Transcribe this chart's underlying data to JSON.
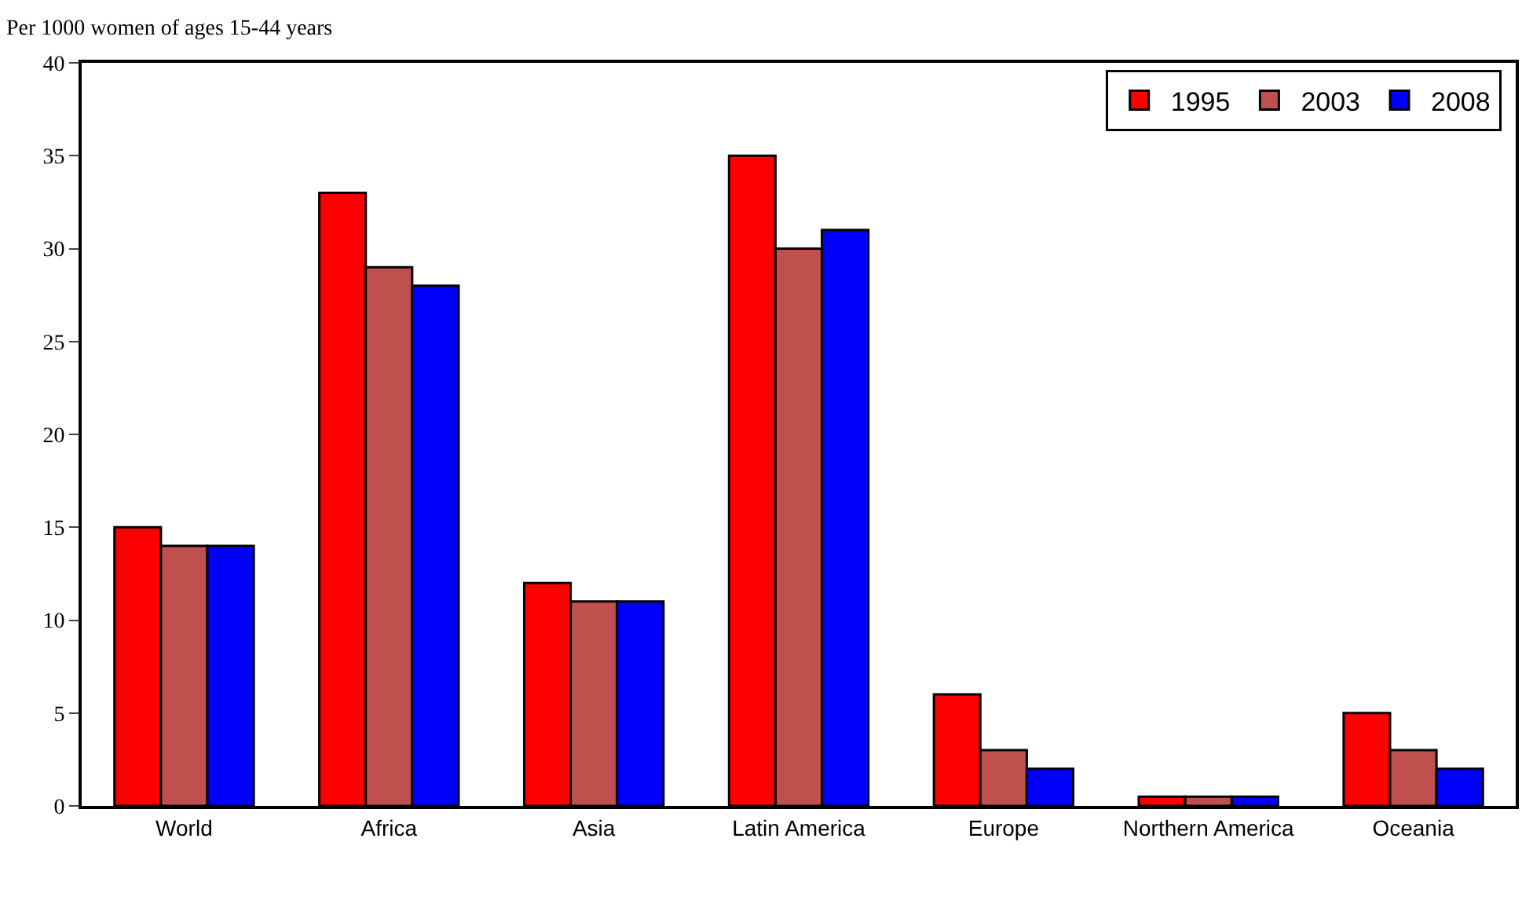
{
  "chart_data": {
    "type": "bar",
    "ylabel": "Per 1000 women of ages 15-44 years",
    "categories": [
      "World",
      "Africa",
      "Asia",
      "Latin America",
      "Europe",
      "Northern America",
      "Oceania"
    ],
    "series": [
      {
        "name": "1995",
        "color": "#ff0000",
        "values": [
          15,
          33,
          12,
          35,
          6,
          0.5,
          5
        ]
      },
      {
        "name": "2003",
        "color": "#c0504d",
        "values": [
          14,
          29,
          11,
          30,
          3,
          0.5,
          3
        ]
      },
      {
        "name": "2008",
        "color": "#0000ff",
        "values": [
          14,
          28,
          11,
          31,
          2,
          0.5,
          2
        ]
      }
    ],
    "ylim": [
      0,
      40
    ],
    "yticks": [
      0,
      5,
      10,
      15,
      20,
      25,
      30,
      35,
      40
    ],
    "grid": false,
    "legend": "top right"
  }
}
